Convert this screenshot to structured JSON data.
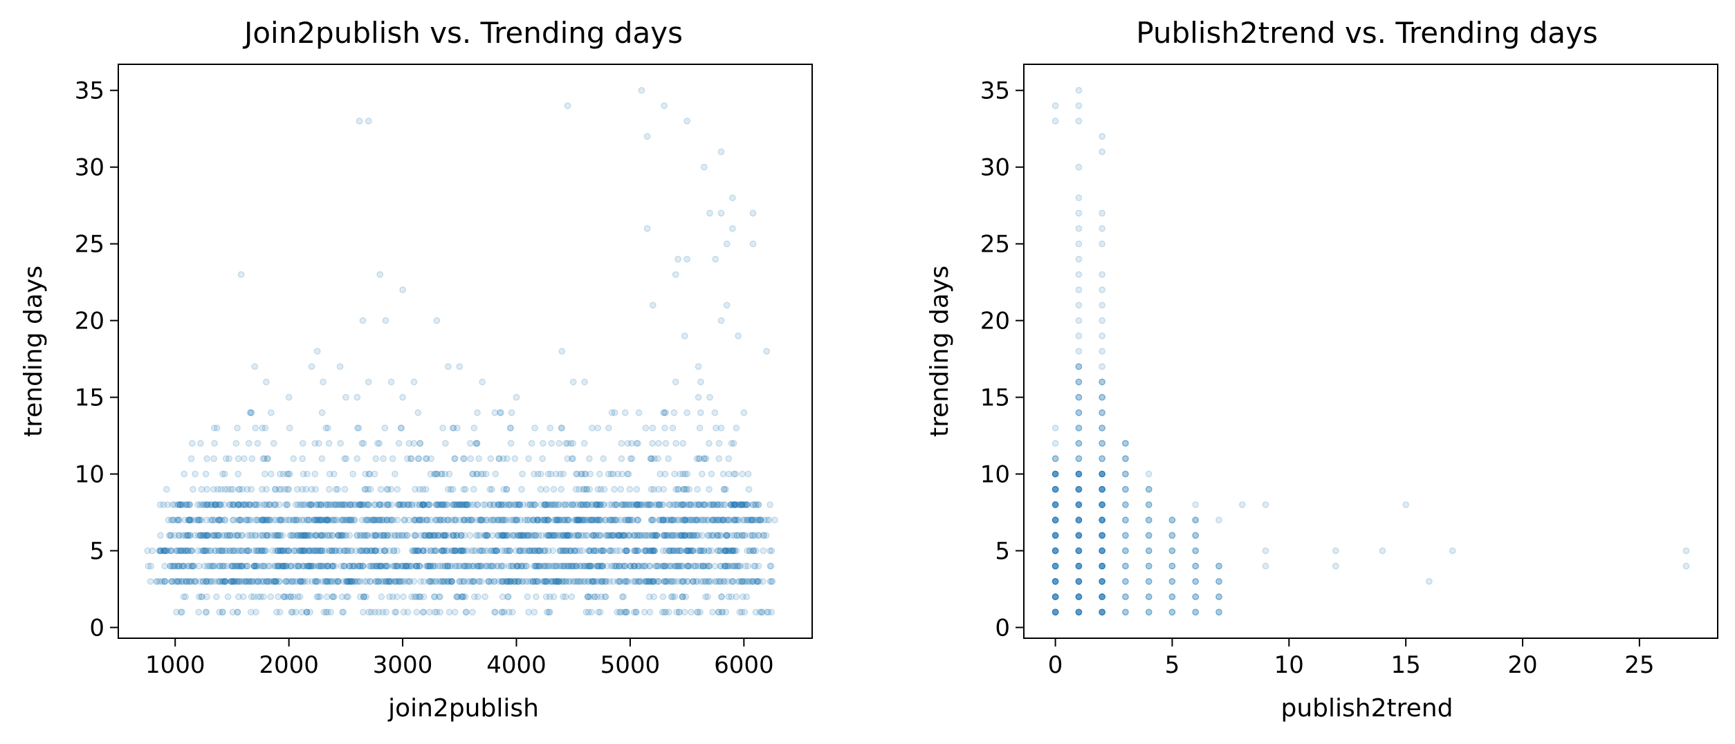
{
  "chart_data": [
    {
      "type": "scatter",
      "title": "Join2publish vs. Trending days",
      "xlabel": "join2publish",
      "ylabel": "trending days",
      "xlim": [
        500,
        6600
      ],
      "ylim": [
        -0.7,
        36.7
      ],
      "xticks": [
        1000,
        2000,
        3000,
        4000,
        5000,
        6000
      ],
      "yticks": [
        0,
        5,
        10,
        15,
        20,
        25,
        30,
        35
      ],
      "grid": false,
      "color": "#1f77b4",
      "point_alpha": 0.15,
      "dense_band": {
        "x_range_by_y": {
          "1": [
            1000,
            6300
          ],
          "2": [
            950,
            6250
          ],
          "3": [
            780,
            6260
          ],
          "4": [
            760,
            6250
          ],
          "5": [
            720,
            6250
          ],
          "6": [
            760,
            6200
          ],
          "7": [
            820,
            6300
          ],
          "8": [
            850,
            6230
          ],
          "9": [
            880,
            6100
          ],
          "10": [
            950,
            6050
          ],
          "11": [
            1000,
            6000
          ],
          "12": [
            1050,
            6020
          ],
          "13": [
            1100,
            5950
          ],
          "14": [
            1150,
            5900
          ]
        }
      },
      "sparse_points": [
        [
          1580,
          23
        ],
        [
          1700,
          17
        ],
        [
          1800,
          16
        ],
        [
          2000,
          15
        ],
        [
          2200,
          17
        ],
        [
          2250,
          18
        ],
        [
          2300,
          16
        ],
        [
          2450,
          17
        ],
        [
          2500,
          15
        ],
        [
          2600,
          15
        ],
        [
          2650,
          20
        ],
        [
          2700,
          16
        ],
        [
          2620,
          33
        ],
        [
          2700,
          33
        ],
        [
          2800,
          23
        ],
        [
          2850,
          20
        ],
        [
          2900,
          16
        ],
        [
          3000,
          15
        ],
        [
          3000,
          22
        ],
        [
          3100,
          16
        ],
        [
          3300,
          20
        ],
        [
          3400,
          17
        ],
        [
          3500,
          17
        ],
        [
          3700,
          16
        ],
        [
          4000,
          15
        ],
        [
          4400,
          18
        ],
        [
          4450,
          34
        ],
        [
          4500,
          16
        ],
        [
          4600,
          16
        ],
        [
          5100,
          35
        ],
        [
          5150,
          32
        ],
        [
          5150,
          26
        ],
        [
          5200,
          21
        ],
        [
          5300,
          34
        ],
        [
          5500,
          33
        ],
        [
          5400,
          23
        ],
        [
          5420,
          24
        ],
        [
          5480,
          19
        ],
        [
          5500,
          24
        ],
        [
          5600,
          17
        ],
        [
          5620,
          16
        ],
        [
          5650,
          30
        ],
        [
          5700,
          27
        ],
        [
          5750,
          24
        ],
        [
          5800,
          20
        ],
        [
          5800,
          27
        ],
        [
          5850,
          21
        ],
        [
          5800,
          31
        ],
        [
          5850,
          25
        ],
        [
          5900,
          26
        ],
        [
          5900,
          28
        ],
        [
          5950,
          19
        ],
        [
          6080,
          27
        ],
        [
          6080,
          25
        ],
        [
          6200,
          18
        ],
        [
          5700,
          15
        ],
        [
          5600,
          15
        ],
        [
          5400,
          16
        ],
        [
          5300,
          14
        ],
        [
          5500,
          14
        ],
        [
          5800,
          13
        ],
        [
          6000,
          14
        ]
      ]
    },
    {
      "type": "scatter",
      "title": "Publish2trend vs. Trending days",
      "xlabel": "publish2trend",
      "ylabel": "trending days",
      "xlim": [
        -1.35,
        28.35
      ],
      "ylim": [
        -0.7,
        36.7
      ],
      "xticks": [
        0,
        5,
        10,
        15,
        20,
        25
      ],
      "yticks": [
        0,
        5,
        10,
        15,
        20,
        25,
        30,
        35
      ],
      "grid": false,
      "color": "#1f77b4",
      "point_alpha": 0.15,
      "columns": [
        {
          "x": 0,
          "dense_y": [
            1,
            11
          ],
          "sparse_y": [
            12,
            13,
            33,
            34
          ]
        },
        {
          "x": 1,
          "dense_y": [
            1,
            17
          ],
          "sparse_y": [
            18,
            19,
            20,
            21,
            22,
            23,
            24,
            25,
            26,
            27,
            28,
            30,
            33,
            34,
            35
          ]
        },
        {
          "x": 2,
          "dense_y": [
            1,
            16
          ],
          "sparse_y": [
            17,
            18,
            19,
            20,
            21,
            22,
            23,
            25,
            26,
            27,
            31,
            32
          ]
        },
        {
          "x": 3,
          "dense_y": [
            1,
            12
          ],
          "sparse_y": []
        },
        {
          "x": 4,
          "dense_y": [
            1,
            9
          ],
          "sparse_y": [
            10
          ]
        },
        {
          "x": 5,
          "dense_y": [
            1,
            7
          ],
          "sparse_y": []
        },
        {
          "x": 6,
          "dense_y": [
            1,
            7
          ],
          "sparse_y": [
            8
          ]
        },
        {
          "x": 7,
          "dense_y": [
            1,
            4
          ],
          "sparse_y": [
            7
          ]
        }
      ],
      "sparse_points": [
        [
          8,
          8
        ],
        [
          9,
          8
        ],
        [
          9,
          5
        ],
        [
          9,
          4
        ],
        [
          12,
          5
        ],
        [
          12,
          4
        ],
        [
          14,
          5
        ],
        [
          15,
          8
        ],
        [
          16,
          3
        ],
        [
          17,
          5
        ],
        [
          27,
          5
        ],
        [
          27,
          4
        ]
      ]
    }
  ]
}
